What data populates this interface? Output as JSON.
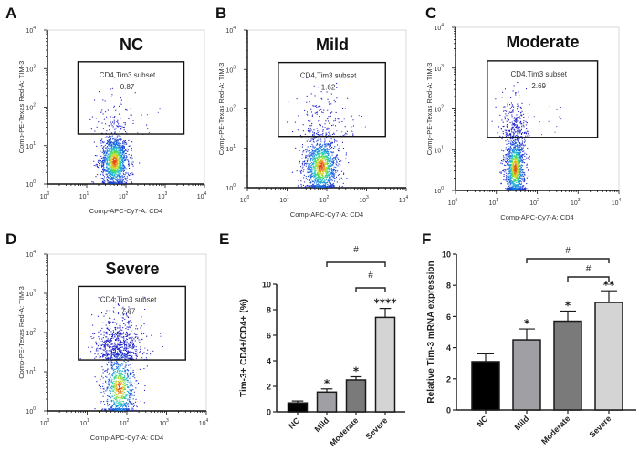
{
  "chart_data": [
    {
      "panel": "A",
      "type": "scatter",
      "title": "NC",
      "xlabel": "Comp-APC-Cy7-A:  CD4",
      "ylabel": "Comp-PE-Texas Red-A:  TIM-3",
      "xscale": "log",
      "yscale": "log",
      "xlim": [
        1,
        10000
      ],
      "ylim": [
        1,
        10000
      ],
      "x_ticks": [
        "10^0",
        "10^1",
        "10^2",
        "10^3",
        "10^4"
      ],
      "y_ticks": [
        "10^0",
        "10^1",
        "10^2",
        "10^3",
        "10^4"
      ],
      "gate": {
        "label": "CD4,Tim3 subset",
        "value": "0.87",
        "x_range": [
          6,
          3000
        ],
        "y_range": [
          20,
          1500
        ]
      },
      "population": {
        "center_log": [
          1.7,
          0.6
        ],
        "spread_log": [
          0.18,
          0.35
        ],
        "upper_fraction": 0.0087
      }
    },
    {
      "panel": "B",
      "type": "scatter",
      "title": "Mild",
      "xlabel": "Comp-APC-Cy7-A:  CD4",
      "ylabel": "Comp-PE-Texas Red-A:  TIM-3",
      "xscale": "log",
      "yscale": "log",
      "xlim": [
        1,
        10000
      ],
      "ylim": [
        1,
        10000
      ],
      "x_ticks": [
        "10^0",
        "10^1",
        "10^2",
        "10^3",
        "10^4"
      ],
      "y_ticks": [
        "10^0",
        "10^1",
        "10^2",
        "10^3",
        "10^4"
      ],
      "gate": {
        "label": "CD4,Tim3 subset",
        "value": "1.62",
        "x_range": [
          6,
          3000
        ],
        "y_range": [
          20,
          1500
        ]
      },
      "population": {
        "center_log": [
          1.85,
          0.55
        ],
        "spread_log": [
          0.22,
          0.38
        ],
        "upper_fraction": 0.0162
      }
    },
    {
      "panel": "C",
      "type": "scatter",
      "title": "Moderate",
      "xlabel": "Comp-APC-Cy7-A:  CD4",
      "ylabel": "Comp-PE-Texas Red-A:  TIM-3",
      "xscale": "log",
      "yscale": "log",
      "xlim": [
        1,
        10000
      ],
      "ylim": [
        1,
        10000
      ],
      "x_ticks": [
        "10^0",
        "10^1",
        "10^2",
        "10^3",
        "10^4"
      ],
      "y_ticks": [
        "10^0",
        "10^1",
        "10^2",
        "10^3",
        "10^4"
      ],
      "gate": {
        "label": "CD4,Tim3 subset",
        "value": "2.69",
        "x_range": [
          6,
          3000
        ],
        "y_range": [
          20,
          1500
        ]
      },
      "population": {
        "center_log": [
          1.45,
          0.55
        ],
        "spread_log": [
          0.12,
          0.4
        ],
        "upper_fraction": 0.0269
      }
    },
    {
      "panel": "D",
      "type": "scatter",
      "title": "Severe",
      "xlabel": "Comp-APC-Cy7-A:  CD4",
      "ylabel": "Comp-PE-Texas Red-A:  TIM-3",
      "xscale": "log",
      "yscale": "log",
      "xlim": [
        1,
        10000
      ],
      "ylim": [
        1,
        10000
      ],
      "x_ticks": [
        "10^0",
        "10^1",
        "10^2",
        "10^3",
        "10^4"
      ],
      "y_ticks": [
        "10^0",
        "10^1",
        "10^2",
        "10^3",
        "10^4"
      ],
      "gate": {
        "label": "CD4,Tim3 subset",
        "value": "7.67",
        "x_range": [
          6,
          3000
        ],
        "y_range": [
          20,
          1500
        ]
      },
      "population": {
        "center_log": [
          1.8,
          0.6
        ],
        "spread_log": [
          0.2,
          0.45
        ],
        "upper_fraction": 0.0767
      }
    },
    {
      "panel": "E",
      "type": "bar",
      "title": "",
      "xlabel": "",
      "ylabel": "Tim-3+ CD4+/CD4+ (%)",
      "categories": [
        "NC",
        "Mild",
        "Moderate",
        "Severe"
      ],
      "values": [
        0.7,
        1.55,
        2.5,
        7.4
      ],
      "errors": [
        0.15,
        0.25,
        0.25,
        0.7
      ],
      "colors": [
        "#000000",
        "#a0a0a4",
        "#7a7a7a",
        "#d4d4d4"
      ],
      "significance": [
        "",
        "*",
        "*",
        "****"
      ],
      "comparisons": [
        {
          "from": "Mild",
          "to": "Severe",
          "label": "#"
        },
        {
          "from": "Moderate",
          "to": "Severe",
          "label": "#"
        }
      ],
      "ylim": [
        0,
        10
      ],
      "y_ticks": [
        0,
        2,
        4,
        6,
        8,
        10
      ]
    },
    {
      "panel": "F",
      "type": "bar",
      "title": "",
      "xlabel": "",
      "ylabel": "Relative Tim-3 mRNA expression",
      "categories": [
        "NC",
        "Mild",
        "Moderate",
        "Severe"
      ],
      "values": [
        3.1,
        4.5,
        5.7,
        6.9
      ],
      "errors": [
        0.5,
        0.7,
        0.65,
        0.75
      ],
      "colors": [
        "#000000",
        "#a0a0a4",
        "#7a7a7a",
        "#d4d4d4"
      ],
      "significance": [
        "",
        "*",
        "*",
        "**"
      ],
      "comparisons": [
        {
          "from": "Mild",
          "to": "Severe",
          "label": "#"
        },
        {
          "from": "Moderate",
          "to": "Severe",
          "label": "#"
        }
      ],
      "ylim": [
        0,
        10
      ],
      "y_ticks": [
        0,
        2,
        4,
        6,
        8,
        10
      ]
    }
  ],
  "panel_letters": [
    "A",
    "B",
    "C",
    "D",
    "E",
    "F"
  ]
}
